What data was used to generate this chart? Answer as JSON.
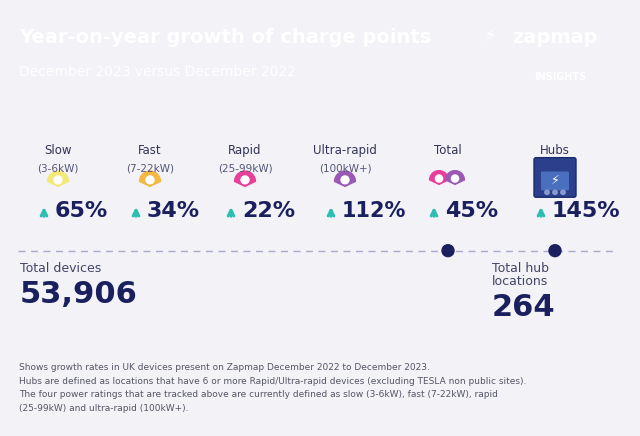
{
  "title": "Year-on-year growth of charge points",
  "subtitle": "December 2023 versus December 2022",
  "header_bg": "#2BBFB3",
  "body_bg": "#F2F2F7",
  "teal_color": "#2BBFB3",
  "navy_color": "#1A1F5E",
  "cat_names": [
    "Slow",
    "Fast",
    "Rapid",
    "Ultra-rapid",
    "Total",
    "Hubs"
  ],
  "cat_subs": [
    "(3-6kW)",
    "(7-22kW)",
    "(25-99kW)",
    "(100kW+)",
    "",
    ""
  ],
  "percentages": [
    "65%",
    "34%",
    "22%",
    "112%",
    "45%",
    "145%"
  ],
  "pin_colors": [
    "#F5E87A",
    "#F5B842",
    "#E8409A",
    "#9B59B6",
    "#E8409A",
    "#2B3F8C"
  ],
  "pin_colors2": [
    "#F5E87A",
    "#F5B842",
    "#E8409A",
    "#C39BD3",
    "#9B59B6",
    "#2B3F8C"
  ],
  "total_devices_label": "Total devices",
  "total_devices_value": "53,906",
  "total_hub_label1": "Total hub",
  "total_hub_label2": "locations",
  "total_hub_value": "264",
  "footer_line1": "Shows growth rates in UK devices present on Zapmap December 2022 to December 2023.",
  "footer_line2": "Hubs are defined as locations that have 6 or more Rapid/Ultra-rapid devices (excluding TESLA non public sites).",
  "footer_line3": "The four power ratings that are tracked above are currently defined as slow (3-6kW), fast (7-22kW), rapid",
  "footer_line4": "(25-99kW) and ultra-rapid (100kW+).",
  "zapmap_text": "zapmap",
  "insights_text": "INSIGHTS"
}
